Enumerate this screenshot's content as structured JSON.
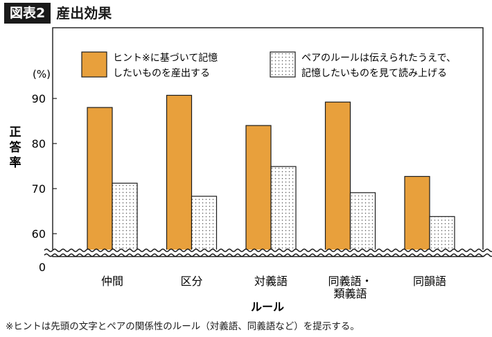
{
  "header": {
    "figure_label": "図表2",
    "title": "産出効果"
  },
  "footnote": "※ヒントは先頭の文字とペアの関係性のルール（対義語、同義語など）を提示する。",
  "colors": {
    "series_a": "#e8a03c",
    "series_b_dots": "#555555",
    "axis": "#1a1a1a"
  },
  "chart_data": {
    "type": "bar",
    "title": "",
    "xlabel": "ルール",
    "ylabel": "正答率",
    "unit_label": "(%)",
    "categories": [
      {
        "lines": [
          "仲間"
        ]
      },
      {
        "lines": [
          "区分"
        ]
      },
      {
        "lines": [
          "対義語"
        ]
      },
      {
        "lines": [
          "同義語・",
          "類義語"
        ]
      },
      {
        "lines": [
          "同韻語"
        ]
      }
    ],
    "series": [
      {
        "legend_lines": [
          "ヒント※に基づいて記憶",
          "したいものを産出する"
        ],
        "values": [
          88,
          90.7,
          84,
          89.2,
          72.7
        ]
      },
      {
        "legend_lines": [
          "ペアのルールは伝えられたうえで、",
          "記憶したいものを見て読み上げる"
        ],
        "values": [
          71.2,
          68.3,
          74.9,
          69.1,
          63.8
        ]
      }
    ],
    "yticks": [
      60,
      70,
      80,
      90
    ],
    "y_zero_label": "0",
    "ylim": [
      55,
      100
    ],
    "axis_break": true,
    "grid": false,
    "legend_position": "top"
  }
}
